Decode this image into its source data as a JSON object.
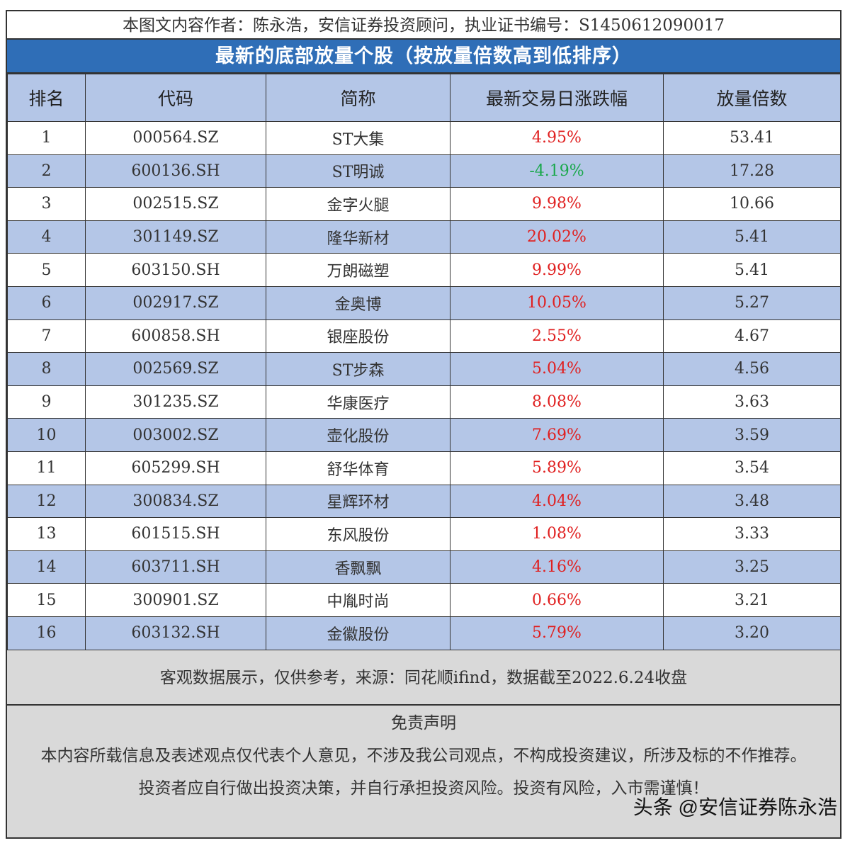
{
  "author_line": "本图文内容作者：陈永浩，安信证券投资顾问，执业证书编号：S1450612090017",
  "banner_title": "最新的底部放量个股（按放量倍数高到低排序）",
  "table": {
    "headers": [
      "排名",
      "代码",
      "简称",
      "最新交易日涨跌幅",
      "放量倍数"
    ],
    "rows": [
      {
        "rank": "1",
        "code": "000564.SZ",
        "name": "ST大集",
        "change": "4.95%",
        "multiple": "53.41",
        "dir": "up"
      },
      {
        "rank": "2",
        "code": "600136.SH",
        "name": "ST明诚",
        "change": "-4.19%",
        "multiple": "17.28",
        "dir": "down"
      },
      {
        "rank": "3",
        "code": "002515.SZ",
        "name": "金字火腿",
        "change": "9.98%",
        "multiple": "10.66",
        "dir": "up"
      },
      {
        "rank": "4",
        "code": "301149.SZ",
        "name": "隆华新材",
        "change": "20.02%",
        "multiple": "5.41",
        "dir": "up"
      },
      {
        "rank": "5",
        "code": "603150.SH",
        "name": "万朗磁塑",
        "change": "9.99%",
        "multiple": "5.41",
        "dir": "up"
      },
      {
        "rank": "6",
        "code": "002917.SZ",
        "name": "金奥博",
        "change": "10.05%",
        "multiple": "5.27",
        "dir": "up"
      },
      {
        "rank": "7",
        "code": "600858.SH",
        "name": "银座股份",
        "change": "2.55%",
        "multiple": "4.67",
        "dir": "up"
      },
      {
        "rank": "8",
        "code": "002569.SZ",
        "name": "ST步森",
        "change": "5.04%",
        "multiple": "4.56",
        "dir": "up"
      },
      {
        "rank": "9",
        "code": "301235.SZ",
        "name": "华康医疗",
        "change": "8.08%",
        "multiple": "3.63",
        "dir": "up"
      },
      {
        "rank": "10",
        "code": "003002.SZ",
        "name": "壶化股份",
        "change": "7.69%",
        "multiple": "3.59",
        "dir": "up"
      },
      {
        "rank": "11",
        "code": "605299.SH",
        "name": "舒华体育",
        "change": "5.89%",
        "multiple": "3.54",
        "dir": "up"
      },
      {
        "rank": "12",
        "code": "300834.SZ",
        "name": "星辉环材",
        "change": "4.04%",
        "multiple": "3.48",
        "dir": "up"
      },
      {
        "rank": "13",
        "code": "601515.SH",
        "name": "东风股份",
        "change": "1.08%",
        "multiple": "3.33",
        "dir": "up"
      },
      {
        "rank": "14",
        "code": "603711.SH",
        "name": "香飘飘",
        "change": "4.16%",
        "multiple": "3.25",
        "dir": "up"
      },
      {
        "rank": "15",
        "code": "300901.SZ",
        "name": "中胤时尚",
        "change": "0.66%",
        "multiple": "3.21",
        "dir": "up"
      },
      {
        "rank": "16",
        "code": "603132.SH",
        "name": "金徽股份",
        "change": "5.79%",
        "multiple": "3.20",
        "dir": "up"
      }
    ]
  },
  "source_note": "客观数据展示，仅供参考，来源：同花顺ifind，数据截至2022.6.24收盘",
  "disclaimer": {
    "title": "免责声明",
    "line1": "本内容所载信息及表述观点仅代表个人意见，不涉及我公司观点，不构成投资建议，所涉及标的不作推荐。",
    "line2": "投资者应自行做出投资决策，并自行承担投资风险。投资有风险，入市需谨慎！"
  },
  "watermark": "头条 @安信证券陈永浩",
  "colors": {
    "banner": "#2f6eb7",
    "header_fill": "#b4c6e7",
    "stripe": "#b4c6e7",
    "up": "#e02020",
    "down": "#1aa84c",
    "footer_fill": "#d9d9d9"
  }
}
